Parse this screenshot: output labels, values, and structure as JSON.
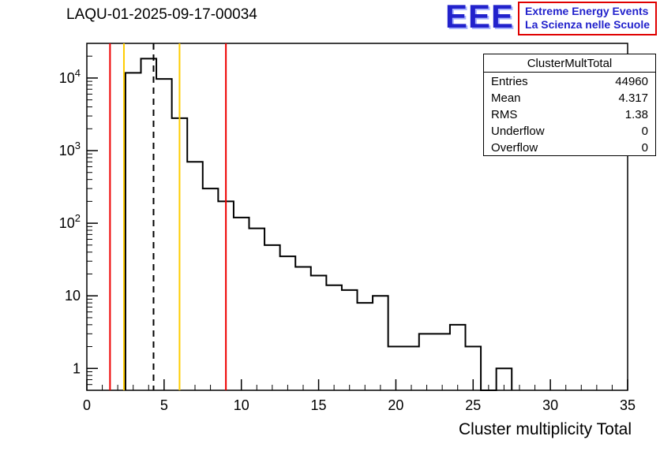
{
  "header": {
    "title": "LAQU-01-2025-09-17-00034"
  },
  "logo": {
    "acronym": "EEE",
    "line1": "Extreme Energy Events",
    "line2": "La Scienza nelle Scuole",
    "blue": "#2222cc",
    "red": "#e00000"
  },
  "stats": {
    "title": "ClusterMultTotal",
    "rows": [
      {
        "label": "Entries",
        "value": "44960"
      },
      {
        "label": "Mean",
        "value": "4.317"
      },
      {
        "label": "RMS",
        "value": "1.38"
      },
      {
        "label": "Underflow",
        "value": "0"
      },
      {
        "label": "Overflow",
        "value": "0"
      }
    ]
  },
  "chart_data": {
    "type": "bar",
    "title": "LAQU-01-2025-09-17-00034",
    "xlabel": "Cluster multiplicity Total",
    "ylabel": "",
    "y_scale": "log",
    "grid": false,
    "x_range": [
      0,
      35
    ],
    "y_range": [
      0.5,
      30000
    ],
    "x_ticks": [
      0,
      5,
      10,
      15,
      20,
      25,
      30,
      35
    ],
    "y_ticks": [
      {
        "value": 1,
        "label": "1"
      },
      {
        "value": 10,
        "label": "10"
      },
      {
        "value": 100,
        "label": "10",
        "exp": "2"
      },
      {
        "value": 1000,
        "label": "10",
        "exp": "3"
      },
      {
        "value": 10000,
        "label": "10",
        "exp": "4"
      }
    ],
    "bin_width": 1,
    "bin_centers": [
      3,
      4,
      5,
      6,
      7,
      8,
      9,
      10,
      11,
      12,
      13,
      14,
      15,
      16,
      17,
      18,
      19,
      20,
      21,
      22,
      23,
      24,
      25,
      26,
      27
    ],
    "counts": [
      11800,
      18500,
      9700,
      2800,
      700,
      300,
      200,
      120,
      85,
      50,
      35,
      25,
      19,
      14,
      12,
      8,
      10,
      2,
      2,
      3,
      3,
      4,
      2,
      0,
      1
    ],
    "line_color": "#000000",
    "marker_lines": [
      {
        "x": 1.5,
        "color": "#ee0000",
        "style": "solid"
      },
      {
        "x": 2.4,
        "color": "#ffcc00",
        "style": "solid"
      },
      {
        "x": 4.317,
        "color": "#000000",
        "style": "dashed"
      },
      {
        "x": 6.0,
        "color": "#ffcc00",
        "style": "solid"
      },
      {
        "x": 9.0,
        "color": "#ee0000",
        "style": "solid"
      }
    ],
    "stats_box": {
      "title": "ClusterMultTotal",
      "entries": 44960,
      "mean": 4.317,
      "rms": 1.38,
      "underflow": 0,
      "overflow": 0
    }
  }
}
